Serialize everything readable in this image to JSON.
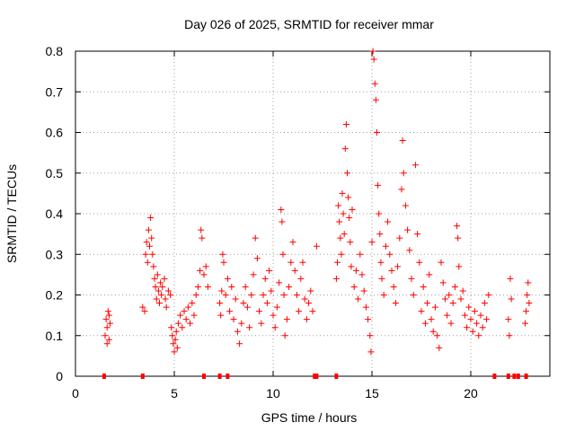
{
  "chart_data": {
    "type": "scatter",
    "title": "Day 026 of 2025, SRMTID for receiver mmar",
    "xlabel": "GPS time / hours",
    "ylabel": "SRMTID / TECUs",
    "xlim": [
      0,
      24
    ],
    "ylim": [
      0,
      0.8
    ],
    "xticks": [
      0,
      5,
      10,
      15,
      20
    ],
    "yticks": [
      0,
      0.1,
      0.2,
      0.3,
      0.4,
      0.5,
      0.6,
      0.7,
      0.8
    ],
    "xtick_labels": [
      "0",
      "5",
      "10",
      "15",
      "20"
    ],
    "ytick_labels": [
      "0",
      "0.1",
      "0.2",
      "0.3",
      "0.4",
      "0.5",
      "0.6",
      "0.7",
      "0.8"
    ],
    "grid": true,
    "marker": "plus",
    "color": "#ff0000",
    "series": [
      {
        "name": "SRMTID",
        "points": [
          [
            1.5,
            0.1
          ],
          [
            1.55,
            0.14
          ],
          [
            1.6,
            0.12
          ],
          [
            1.65,
            0.16
          ],
          [
            1.7,
            0.09
          ],
          [
            1.75,
            0.13
          ],
          [
            1.6,
            0.08
          ],
          [
            1.7,
            0.15
          ],
          [
            3.4,
            0.17
          ],
          [
            3.5,
            0.16
          ],
          [
            3.55,
            0.3
          ],
          [
            3.6,
            0.33
          ],
          [
            3.65,
            0.28
          ],
          [
            3.7,
            0.36
          ],
          [
            3.75,
            0.32
          ],
          [
            3.8,
            0.39
          ],
          [
            3.85,
            0.34
          ],
          [
            3.9,
            0.3
          ],
          [
            3.95,
            0.27
          ],
          [
            4.0,
            0.24
          ],
          [
            4.05,
            0.22
          ],
          [
            4.1,
            0.19
          ],
          [
            4.15,
            0.25
          ],
          [
            4.2,
            0.21
          ],
          [
            4.25,
            0.18
          ],
          [
            4.3,
            0.23
          ],
          [
            4.35,
            0.2
          ],
          [
            4.4,
            0.22
          ],
          [
            4.5,
            0.24
          ],
          [
            4.55,
            0.19
          ],
          [
            4.6,
            0.17
          ],
          [
            4.7,
            0.21
          ],
          [
            4.8,
            0.2
          ],
          [
            4.85,
            0.12
          ],
          [
            4.9,
            0.1
          ],
          [
            4.95,
            0.08
          ],
          [
            5.0,
            0.06
          ],
          [
            5.05,
            0.09
          ],
          [
            5.1,
            0.11
          ],
          [
            5.15,
            0.07
          ],
          [
            5.2,
            0.13
          ],
          [
            5.3,
            0.15
          ],
          [
            5.4,
            0.12
          ],
          [
            5.5,
            0.16
          ],
          [
            5.6,
            0.14
          ],
          [
            5.7,
            0.17
          ],
          [
            5.8,
            0.13
          ],
          [
            5.9,
            0.18
          ],
          [
            6.0,
            0.15
          ],
          [
            6.1,
            0.2
          ],
          [
            6.2,
            0.22
          ],
          [
            6.3,
            0.26
          ],
          [
            6.35,
            0.36
          ],
          [
            6.4,
            0.34
          ],
          [
            6.5,
            0.25
          ],
          [
            6.6,
            0.27
          ],
          [
            6.7,
            0.22
          ],
          [
            7.3,
            0.18
          ],
          [
            7.35,
            0.15
          ],
          [
            7.4,
            0.21
          ],
          [
            7.45,
            0.3
          ],
          [
            7.5,
            0.28
          ],
          [
            7.6,
            0.2
          ],
          [
            7.7,
            0.24
          ],
          [
            7.8,
            0.16
          ],
          [
            7.9,
            0.22
          ],
          [
            8.0,
            0.14
          ],
          [
            8.1,
            0.19
          ],
          [
            8.2,
            0.11
          ],
          [
            8.3,
            0.08
          ],
          [
            8.4,
            0.13
          ],
          [
            8.5,
            0.18
          ],
          [
            8.6,
            0.22
          ],
          [
            8.7,
            0.17
          ],
          [
            8.8,
            0.12
          ],
          [
            8.9,
            0.2
          ],
          [
            9.0,
            0.25
          ],
          [
            9.1,
            0.34
          ],
          [
            9.2,
            0.29
          ],
          [
            9.3,
            0.16
          ],
          [
            9.4,
            0.13
          ],
          [
            9.5,
            0.2
          ],
          [
            9.6,
            0.24
          ],
          [
            9.7,
            0.18
          ],
          [
            9.8,
            0.26
          ],
          [
            9.9,
            0.21
          ],
          [
            10.0,
            0.15
          ],
          [
            10.1,
            0.12
          ],
          [
            10.2,
            0.17
          ],
          [
            10.3,
            0.23
          ],
          [
            10.4,
            0.41
          ],
          [
            10.45,
            0.38
          ],
          [
            10.5,
            0.3
          ],
          [
            10.55,
            0.2
          ],
          [
            10.6,
            0.1
          ],
          [
            10.7,
            0.14
          ],
          [
            10.8,
            0.22
          ],
          [
            10.9,
            0.28
          ],
          [
            11.0,
            0.33
          ],
          [
            11.1,
            0.26
          ],
          [
            11.2,
            0.2
          ],
          [
            11.3,
            0.16
          ],
          [
            11.4,
            0.24
          ],
          [
            11.5,
            0.28
          ],
          [
            11.6,
            0.19
          ],
          [
            11.7,
            0.14
          ],
          [
            11.8,
            0.18
          ],
          [
            11.9,
            0.21
          ],
          [
            12.0,
            0.16
          ],
          [
            12.2,
            0.32
          ],
          [
            13.2,
            0.24
          ],
          [
            13.25,
            0.28
          ],
          [
            13.3,
            0.42
          ],
          [
            13.35,
            0.38
          ],
          [
            13.4,
            0.34
          ],
          [
            13.45,
            0.3
          ],
          [
            13.5,
            0.45
          ],
          [
            13.55,
            0.4
          ],
          [
            13.6,
            0.35
          ],
          [
            13.65,
            0.56
          ],
          [
            13.7,
            0.62
          ],
          [
            13.75,
            0.5
          ],
          [
            13.8,
            0.44
          ],
          [
            13.85,
            0.39
          ],
          [
            13.9,
            0.33
          ],
          [
            13.95,
            0.27
          ],
          [
            14.0,
            0.41
          ],
          [
            14.1,
            0.22
          ],
          [
            14.2,
            0.26
          ],
          [
            14.3,
            0.19
          ],
          [
            14.4,
            0.3
          ],
          [
            14.5,
            0.25
          ],
          [
            14.6,
            0.21
          ],
          [
            14.7,
            0.17
          ],
          [
            14.8,
            0.14
          ],
          [
            14.9,
            0.1
          ],
          [
            14.95,
            0.06
          ],
          [
            15.0,
            0.33
          ],
          [
            15.05,
            0.8
          ],
          [
            15.1,
            0.78
          ],
          [
            15.15,
            0.72
          ],
          [
            15.2,
            0.68
          ],
          [
            15.25,
            0.6
          ],
          [
            15.3,
            0.47
          ],
          [
            15.35,
            0.4
          ],
          [
            15.4,
            0.35
          ],
          [
            15.45,
            0.28
          ],
          [
            15.5,
            0.24
          ],
          [
            15.6,
            0.2
          ],
          [
            15.7,
            0.32
          ],
          [
            15.8,
            0.38
          ],
          [
            15.9,
            0.3
          ],
          [
            16.0,
            0.26
          ],
          [
            16.1,
            0.22
          ],
          [
            16.2,
            0.18
          ],
          [
            16.3,
            0.27
          ],
          [
            16.4,
            0.34
          ],
          [
            16.5,
            0.46
          ],
          [
            16.55,
            0.58
          ],
          [
            16.6,
            0.5
          ],
          [
            16.7,
            0.42
          ],
          [
            16.8,
            0.36
          ],
          [
            16.9,
            0.31
          ],
          [
            17.0,
            0.24
          ],
          [
            17.1,
            0.2
          ],
          [
            17.2,
            0.52
          ],
          [
            17.3,
            0.35
          ],
          [
            17.4,
            0.28
          ],
          [
            17.5,
            0.16
          ],
          [
            17.6,
            0.22
          ],
          [
            17.7,
            0.13
          ],
          [
            17.8,
            0.18
          ],
          [
            17.9,
            0.25
          ],
          [
            18.0,
            0.14
          ],
          [
            18.1,
            0.11
          ],
          [
            18.2,
            0.17
          ],
          [
            18.3,
            0.1
          ],
          [
            18.4,
            0.07
          ],
          [
            18.5,
            0.28
          ],
          [
            18.6,
            0.23
          ],
          [
            18.7,
            0.19
          ],
          [
            18.8,
            0.15
          ],
          [
            18.9,
            0.2
          ],
          [
            19.0,
            0.13
          ],
          [
            19.1,
            0.18
          ],
          [
            19.2,
            0.22
          ],
          [
            19.3,
            0.37
          ],
          [
            19.35,
            0.34
          ],
          [
            19.4,
            0.27
          ],
          [
            19.5,
            0.19
          ],
          [
            19.6,
            0.21
          ],
          [
            19.7,
            0.15
          ],
          [
            19.8,
            0.12
          ],
          [
            19.9,
            0.17
          ],
          [
            20.0,
            0.14
          ],
          [
            20.1,
            0.11
          ],
          [
            20.2,
            0.16
          ],
          [
            20.3,
            0.13
          ],
          [
            20.4,
            0.1
          ],
          [
            20.5,
            0.15
          ],
          [
            20.6,
            0.12
          ],
          [
            20.7,
            0.18
          ],
          [
            20.8,
            0.14
          ],
          [
            20.9,
            0.2
          ],
          [
            21.9,
            0.14
          ],
          [
            21.95,
            0.1
          ],
          [
            22.0,
            0.24
          ],
          [
            22.05,
            0.19
          ],
          [
            22.8,
            0.16
          ],
          [
            22.85,
            0.2
          ],
          [
            22.9,
            0.23
          ],
          [
            22.95,
            0.18
          ],
          [
            22.75,
            0.13
          ]
        ]
      }
    ],
    "zero_markers_x": [
      1.45,
      3.4,
      6.5,
      7.3,
      7.7,
      12.1,
      12.2,
      13.2,
      21.2,
      21.9,
      22.2,
      22.4,
      22.8
    ]
  }
}
